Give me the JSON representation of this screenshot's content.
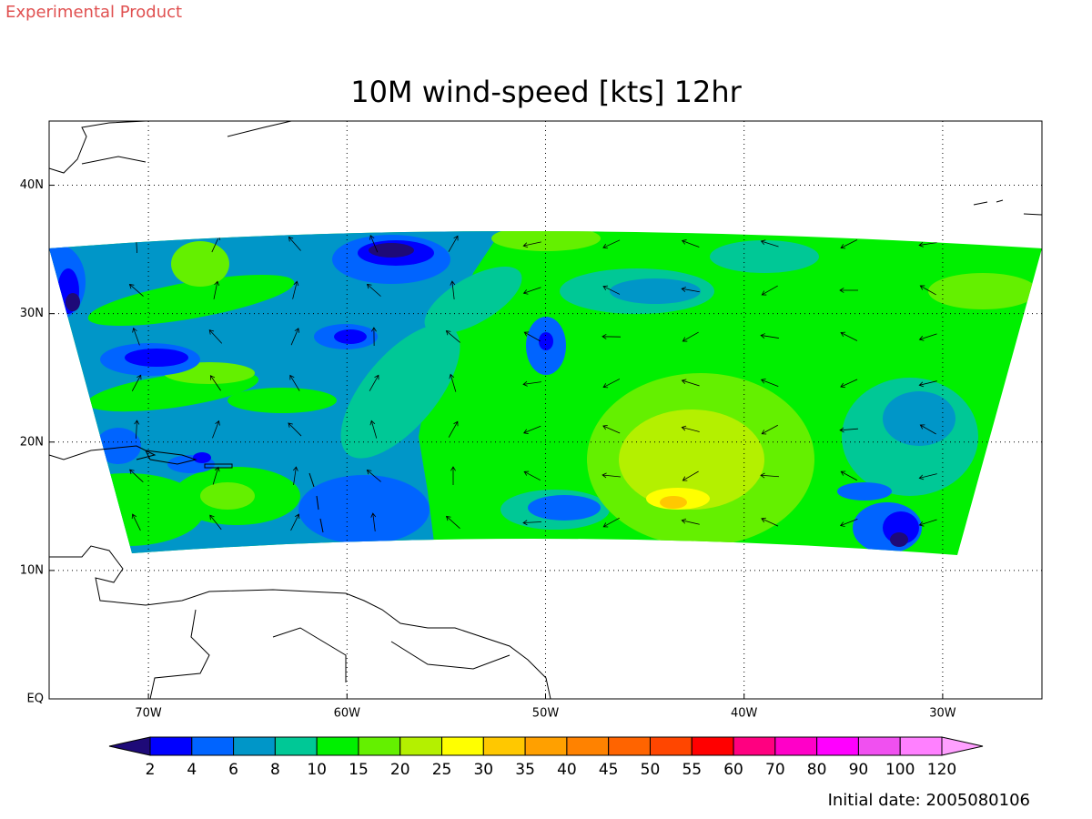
{
  "header": {
    "note": "Experimental Product",
    "title": "10M wind-speed [kts] 12hr"
  },
  "map": {
    "lon_range": [
      -75,
      -25
    ],
    "lat_range": [
      0,
      45
    ],
    "lon_ticks": [
      {
        "value": -70,
        "label": "70W"
      },
      {
        "value": -60,
        "label": "60W"
      },
      {
        "value": -50,
        "label": "50W"
      },
      {
        "value": -40,
        "label": "40W"
      },
      {
        "value": -30,
        "label": "30W"
      }
    ],
    "lat_ticks": [
      {
        "value": 0,
        "label": "EQ"
      },
      {
        "value": 10,
        "label": "10N"
      },
      {
        "value": 20,
        "label": "20N"
      },
      {
        "value": 30,
        "label": "30N"
      },
      {
        "value": 40,
        "label": "40N"
      }
    ],
    "grid": true
  },
  "colorbar": {
    "levels": [
      2,
      4,
      6,
      8,
      10,
      15,
      20,
      25,
      30,
      35,
      40,
      45,
      50,
      55,
      60,
      70,
      80,
      90,
      100,
      120
    ],
    "colors": [
      "#1e0a78",
      "#0000ff",
      "#0064ff",
      "#0096c8",
      "#00c896",
      "#00f000",
      "#64f000",
      "#b4f000",
      "#ffff00",
      "#ffc800",
      "#ffa000",
      "#ff8200",
      "#ff6400",
      "#ff4600",
      "#ff0000",
      "#ff0080",
      "#ff00c8",
      "#ff00ff",
      "#f050f0",
      "#ff80ff",
      "#ffa0ff"
    ]
  },
  "footer": {
    "initial_date": "Initial date: 2005080106"
  }
}
